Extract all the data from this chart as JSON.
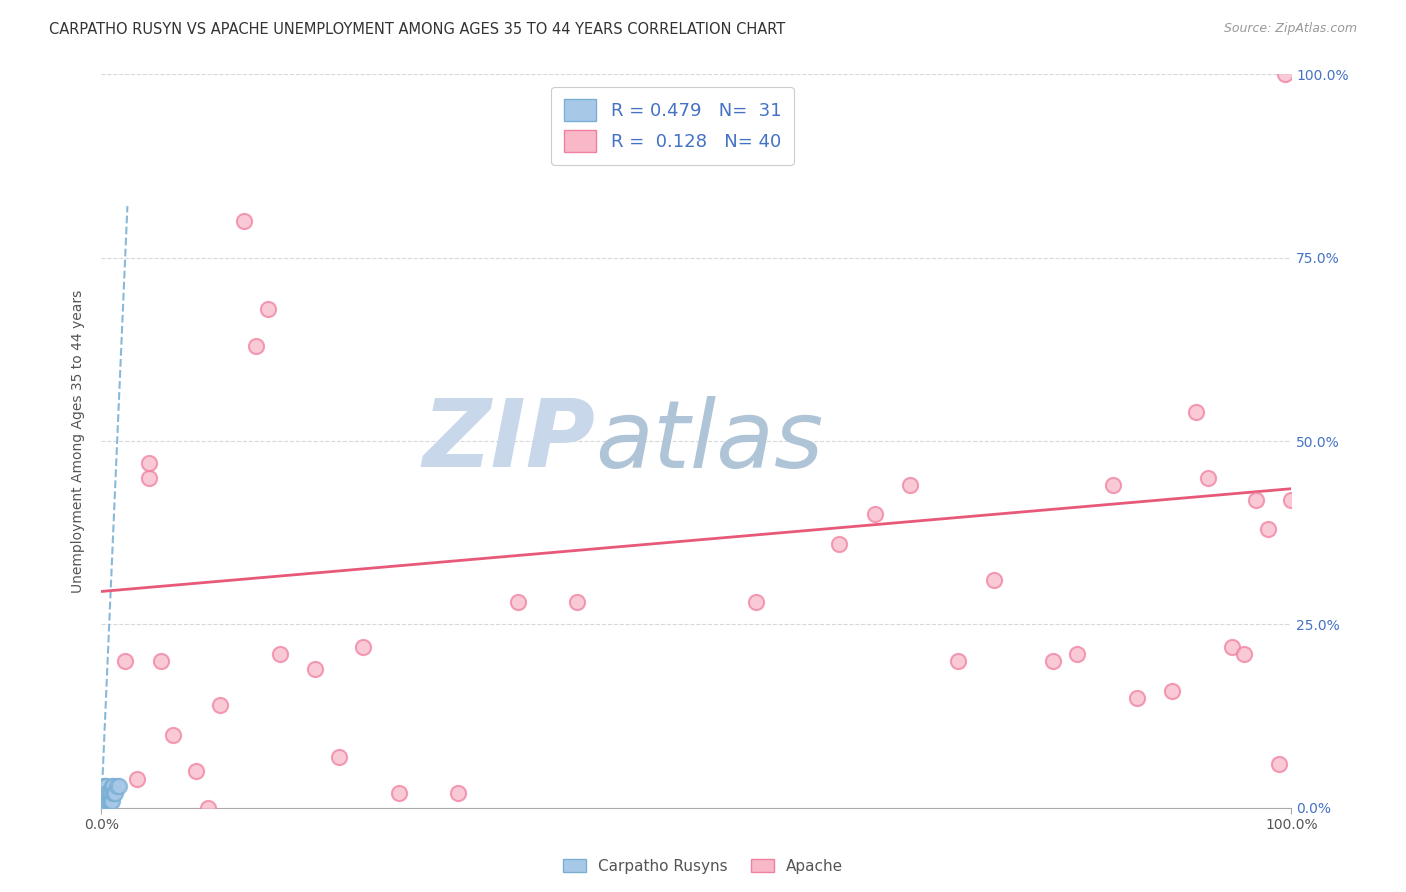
{
  "title": "CARPATHO RUSYN VS APACHE UNEMPLOYMENT AMONG AGES 35 TO 44 YEARS CORRELATION CHART",
  "source": "Source: ZipAtlas.com",
  "ylabel": "Unemployment Among Ages 35 to 44 years",
  "xlim": [
    0,
    1.0
  ],
  "ylim": [
    0,
    1.0
  ],
  "x_tick_labels": [
    "0.0%",
    "100.0%"
  ],
  "x_tick_positions": [
    0.0,
    1.0
  ],
  "y_tick_labels": [
    "0.0%",
    "25.0%",
    "50.0%",
    "75.0%",
    "100.0%"
  ],
  "y_tick_positions": [
    0.0,
    0.25,
    0.5,
    0.75,
    1.0
  ],
  "carpatho_color_fill": "#a8c8e8",
  "carpatho_color_edge": "#7aafd4",
  "apache_color_fill": "#f8b8c8",
  "apache_color_edge": "#f080a0",
  "trendline_carpatho_color": "#8ab8d8",
  "trendline_apache_color": "#e85878",
  "watermark_zip_color": "#c8d8e8",
  "watermark_atlas_color": "#b8c8d8",
  "background_color": "#ffffff",
  "grid_color": "#d8d8d8",
  "carpatho_x": [
    0.001,
    0.001,
    0.001,
    0.002,
    0.002,
    0.002,
    0.002,
    0.003,
    0.003,
    0.003,
    0.003,
    0.004,
    0.004,
    0.004,
    0.005,
    0.005,
    0.005,
    0.006,
    0.006,
    0.007,
    0.007,
    0.008,
    0.008,
    0.009,
    0.009,
    0.01,
    0.01,
    0.011,
    0.012,
    0.013,
    0.015
  ],
  "carpatho_y": [
    0.0,
    0.01,
    0.02,
    0.0,
    0.01,
    0.02,
    0.03,
    0.0,
    0.01,
    0.02,
    0.03,
    0.01,
    0.02,
    0.03,
    0.0,
    0.01,
    0.02,
    0.01,
    0.02,
    0.01,
    0.02,
    0.01,
    0.02,
    0.01,
    0.03,
    0.02,
    0.03,
    0.02,
    0.02,
    0.03,
    0.03
  ],
  "apache_x": [
    0.02,
    0.03,
    0.04,
    0.04,
    0.05,
    0.06,
    0.08,
    0.09,
    0.1,
    0.12,
    0.13,
    0.14,
    0.15,
    0.18,
    0.2,
    0.22,
    0.25,
    0.3,
    0.35,
    0.4,
    0.55,
    0.62,
    0.65,
    0.68,
    0.72,
    0.75,
    0.8,
    0.82,
    0.85,
    0.87,
    0.9,
    0.92,
    0.93,
    0.95,
    0.96,
    0.97,
    0.98,
    0.99,
    0.995,
    1.0
  ],
  "apache_y": [
    0.2,
    0.04,
    0.45,
    0.47,
    0.2,
    0.1,
    0.05,
    0.0,
    0.14,
    0.8,
    0.63,
    0.68,
    0.21,
    0.19,
    0.07,
    0.22,
    0.02,
    0.02,
    0.28,
    0.28,
    0.28,
    0.36,
    0.4,
    0.44,
    0.2,
    0.31,
    0.2,
    0.21,
    0.44,
    0.15,
    0.16,
    0.54,
    0.45,
    0.22,
    0.21,
    0.42,
    0.38,
    0.06,
    1.0,
    0.42
  ],
  "carpatho_trendline": [
    0.0,
    0.022,
    0.0,
    0.82
  ],
  "apache_trendline": [
    0.0,
    1.0,
    0.295,
    0.435
  ],
  "title_fontsize": 10.5,
  "label_fontsize": 10,
  "tick_fontsize": 10,
  "legend_fontsize": 13,
  "source_fontsize": 9,
  "dot_size": 120,
  "dot_linewidth": 1.5
}
